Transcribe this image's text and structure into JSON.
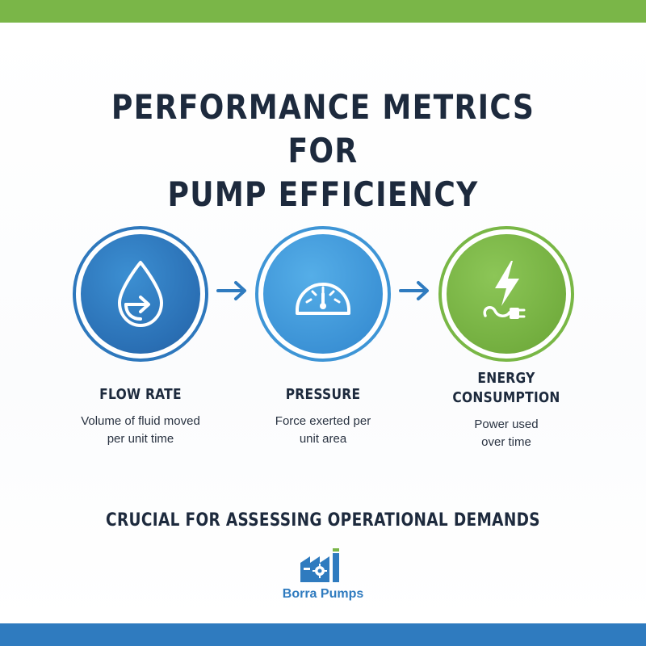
{
  "title_line1": "PERFORMANCE METRICS FOR",
  "title_line2": "PUMP EFFICIENCY",
  "metrics": [
    {
      "name": "FLOW RATE",
      "desc_line1": "Volume of fluid moved",
      "desc_line2": "per unit time",
      "icon": "water-drop-arrow-icon",
      "color": "#2a6fb4"
    },
    {
      "name": "PRESSURE",
      "desc_line1": "Force exerted per",
      "desc_line2": "unit area",
      "icon": "gauge-icon",
      "color": "#3a90d4"
    },
    {
      "name_line1": "ENERGY",
      "name_line2": "CONSUMPTION",
      "desc_line1": "Power used",
      "desc_line2": "over time",
      "icon": "lightning-plug-icon",
      "color": "#72ad3e"
    }
  ],
  "subtitle": "CRUCIAL FOR ASSESSING OPERATIONAL DEMANDS",
  "brand": {
    "name": "Borra Pumps",
    "icon": "factory-gear-icon",
    "color": "#2f7bbf"
  },
  "colors": {
    "accent_green": "#7ab648",
    "accent_blue": "#2f7bbf",
    "text_dark": "#1d2a3d"
  }
}
